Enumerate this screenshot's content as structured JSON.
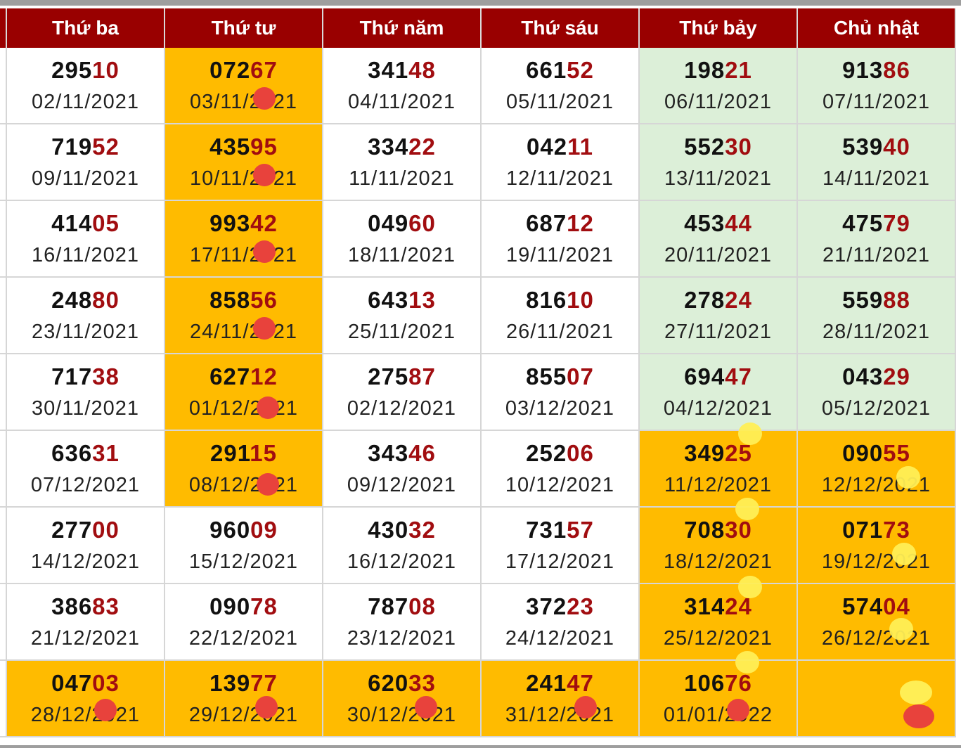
{
  "headers": [
    "Thứ ba",
    "Thứ tư",
    "Thứ năm",
    "Thứ sáu",
    "Thứ bảy",
    "Chủ nhật"
  ],
  "colors": {
    "header_bg": "#990000",
    "highlight_gold": "#ffbb00",
    "weekend_green": "#dcefd8",
    "suffix_red": "#a10d10",
    "marker_red": "#e8423c",
    "marker_yellow": "#ffee55"
  },
  "rows": [
    [
      {
        "prefix": "295",
        "suffix": "10",
        "date": "02/11/2021"
      },
      {
        "prefix": "072",
        "suffix": "67",
        "date": "03/11/2021"
      },
      {
        "prefix": "341",
        "suffix": "48",
        "date": "04/11/2021"
      },
      {
        "prefix": "661",
        "suffix": "52",
        "date": "05/11/2021"
      },
      {
        "prefix": "198",
        "suffix": "21",
        "date": "06/11/2021"
      },
      {
        "prefix": "913",
        "suffix": "86",
        "date": "07/11/2021"
      }
    ],
    [
      {
        "prefix": "719",
        "suffix": "52",
        "date": "09/11/2021"
      },
      {
        "prefix": "435",
        "suffix": "95",
        "date": "10/11/2021"
      },
      {
        "prefix": "334",
        "suffix": "22",
        "date": "11/11/2021"
      },
      {
        "prefix": "042",
        "suffix": "11",
        "date": "12/11/2021"
      },
      {
        "prefix": "552",
        "suffix": "30",
        "date": "13/11/2021"
      },
      {
        "prefix": "539",
        "suffix": "40",
        "date": "14/11/2021"
      }
    ],
    [
      {
        "prefix": "414",
        "suffix": "05",
        "date": "16/11/2021"
      },
      {
        "prefix": "993",
        "suffix": "42",
        "date": "17/11/2021"
      },
      {
        "prefix": "049",
        "suffix": "60",
        "date": "18/11/2021"
      },
      {
        "prefix": "687",
        "suffix": "12",
        "date": "19/11/2021"
      },
      {
        "prefix": "453",
        "suffix": "44",
        "date": "20/11/2021"
      },
      {
        "prefix": "475",
        "suffix": "79",
        "date": "21/11/2021"
      }
    ],
    [
      {
        "prefix": "248",
        "suffix": "80",
        "date": "23/11/2021"
      },
      {
        "prefix": "858",
        "suffix": "56",
        "date": "24/11/2021"
      },
      {
        "prefix": "643",
        "suffix": "13",
        "date": "25/11/2021"
      },
      {
        "prefix": "816",
        "suffix": "10",
        "date": "26/11/2021"
      },
      {
        "prefix": "278",
        "suffix": "24",
        "date": "27/11/2021"
      },
      {
        "prefix": "559",
        "suffix": "88",
        "date": "28/11/2021"
      }
    ],
    [
      {
        "prefix": "717",
        "suffix": "38",
        "date": "30/11/2021"
      },
      {
        "prefix": "627",
        "suffix": "12",
        "date": "01/12/2021"
      },
      {
        "prefix": "275",
        "suffix": "87",
        "date": "02/12/2021"
      },
      {
        "prefix": "855",
        "suffix": "07",
        "date": "03/12/2021"
      },
      {
        "prefix": "694",
        "suffix": "47",
        "date": "04/12/2021"
      },
      {
        "prefix": "043",
        "suffix": "29",
        "date": "05/12/2021"
      }
    ],
    [
      {
        "prefix": "636",
        "suffix": "31",
        "date": "07/12/2021"
      },
      {
        "prefix": "291",
        "suffix": "15",
        "date": "08/12/2021"
      },
      {
        "prefix": "343",
        "suffix": "46",
        "date": "09/12/2021"
      },
      {
        "prefix": "252",
        "suffix": "06",
        "date": "10/12/2021"
      },
      {
        "prefix": "349",
        "suffix": "25",
        "date": "11/12/2021"
      },
      {
        "prefix": "090",
        "suffix": "55",
        "date": "12/12/2021"
      }
    ],
    [
      {
        "prefix": "277",
        "suffix": "00",
        "date": "14/12/2021"
      },
      {
        "prefix": "960",
        "suffix": "09",
        "date": "15/12/2021"
      },
      {
        "prefix": "430",
        "suffix": "32",
        "date": "16/12/2021"
      },
      {
        "prefix": "731",
        "suffix": "57",
        "date": "17/12/2021"
      },
      {
        "prefix": "708",
        "suffix": "30",
        "date": "18/12/2021"
      },
      {
        "prefix": "071",
        "suffix": "73",
        "date": "19/12/2021"
      }
    ],
    [
      {
        "prefix": "386",
        "suffix": "83",
        "date": "21/12/2021"
      },
      {
        "prefix": "090",
        "suffix": "78",
        "date": "22/12/2021"
      },
      {
        "prefix": "787",
        "suffix": "08",
        "date": "23/12/2021"
      },
      {
        "prefix": "372",
        "suffix": "23",
        "date": "24/12/2021"
      },
      {
        "prefix": "314",
        "suffix": "24",
        "date": "25/12/2021"
      },
      {
        "prefix": "574",
        "suffix": "04",
        "date": "26/12/2021"
      }
    ],
    [
      {
        "prefix": "047",
        "suffix": "03",
        "date": "28/12/2021"
      },
      {
        "prefix": "139",
        "suffix": "77",
        "date": "29/12/2021"
      },
      {
        "prefix": "620",
        "suffix": "33",
        "date": "30/12/2021"
      },
      {
        "prefix": "241",
        "suffix": "47",
        "date": "31/12/2021"
      },
      {
        "prefix": "106",
        "suffix": "76",
        "date": "01/01/2022"
      },
      {
        "prefix": "",
        "suffix": "",
        "date": ""
      }
    ]
  ]
}
